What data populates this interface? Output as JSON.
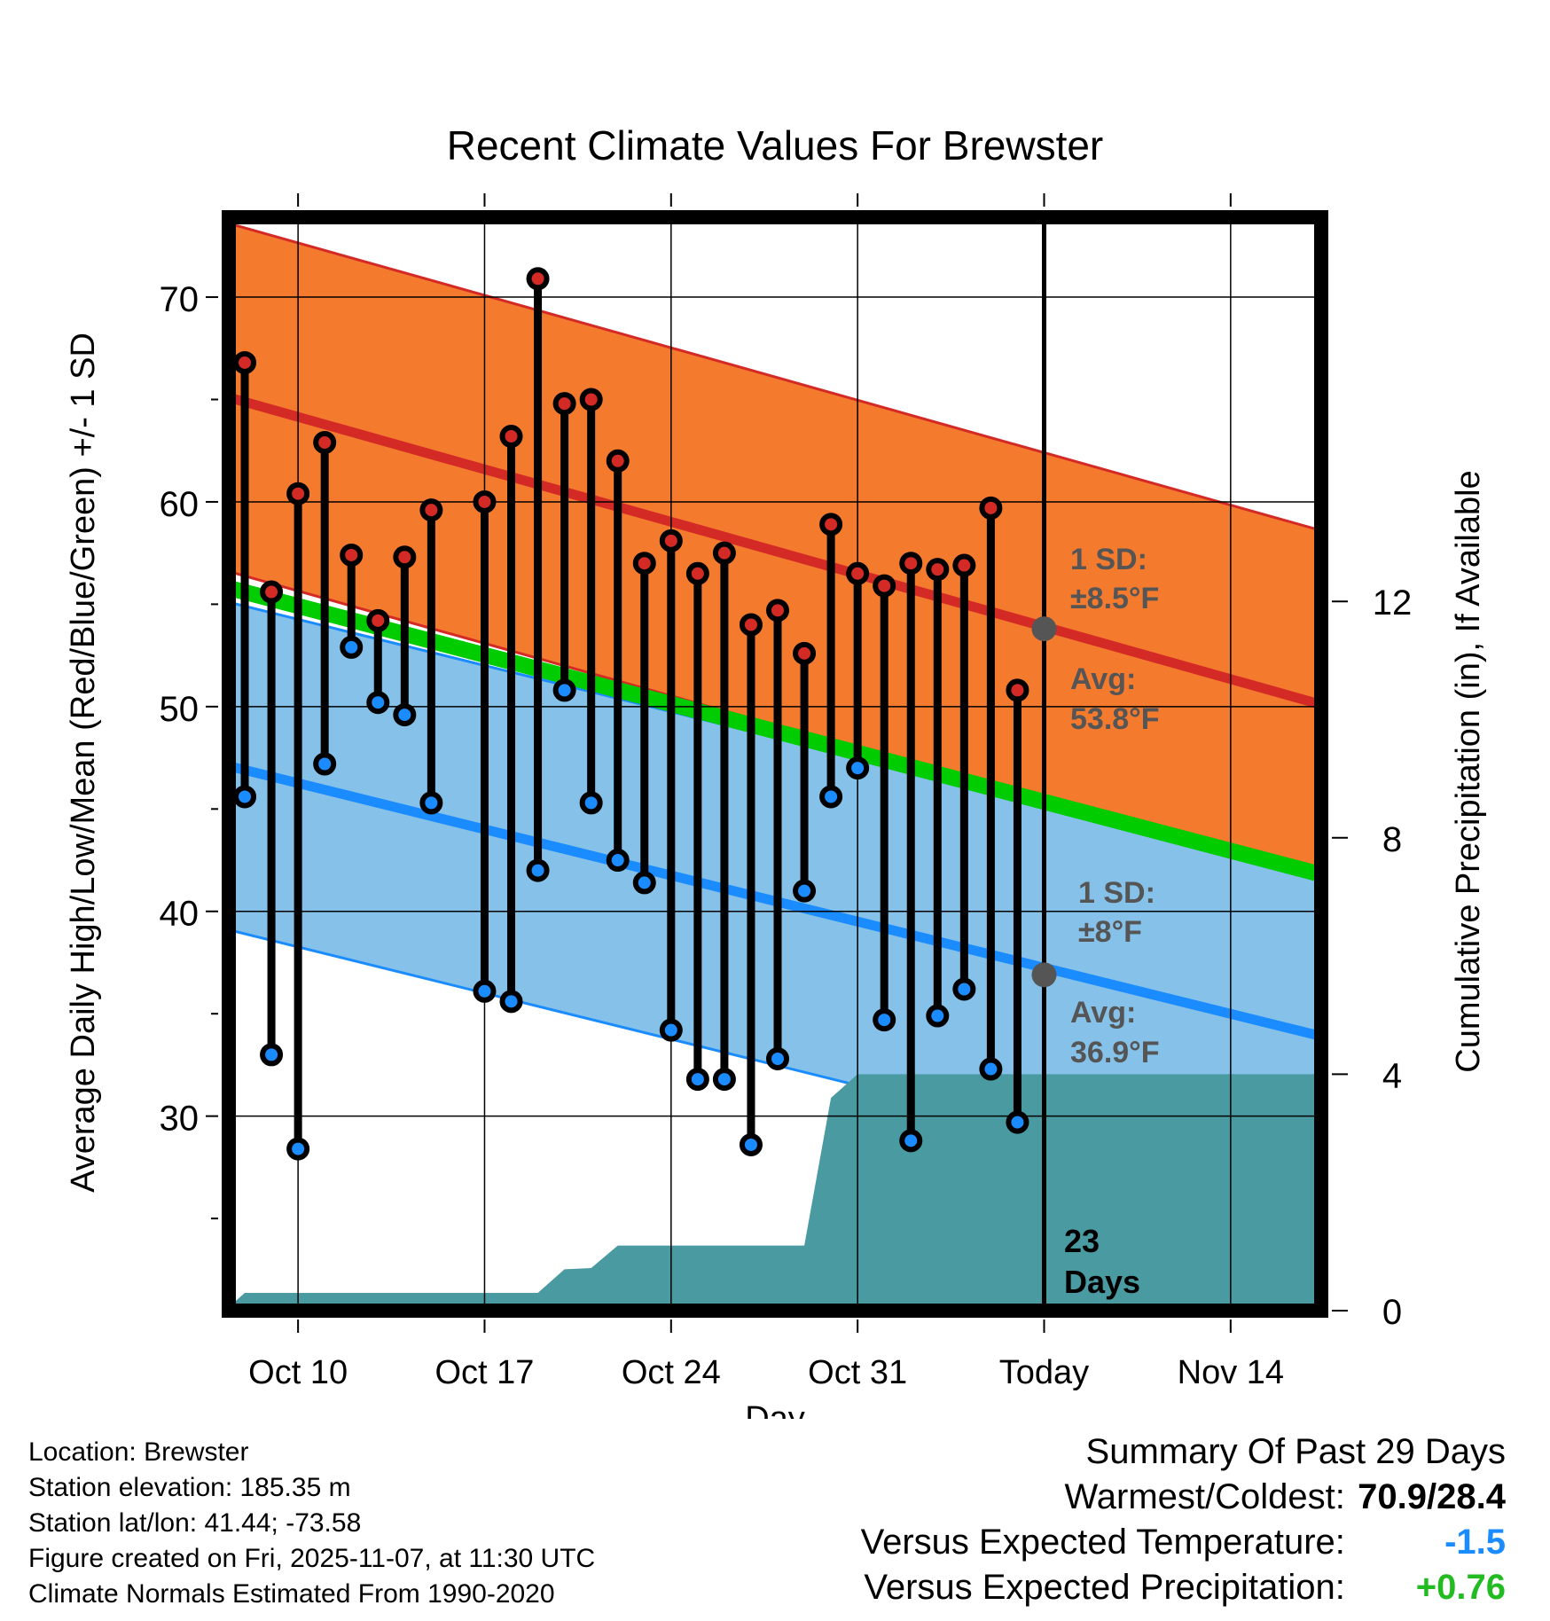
{
  "chart_data": {
    "type": "line",
    "title": "Recent Climate Values For Brewster",
    "xlabel": "Day",
    "ylabel": "Average Daily High/Low/Mean (Red/Blue/Green) +/- 1 SD",
    "y2label": "Cumulative Precipitation (in), If Available",
    "ylim": [
      20.5,
      73.9
    ],
    "y2lim": [
      0,
      18.5
    ],
    "xlim": [
      -0.6,
      40.4
    ],
    "x_ticks": [
      {
        "day": 2,
        "label": "Oct 10"
      },
      {
        "day": 9,
        "label": "Oct 17"
      },
      {
        "day": 16,
        "label": "Oct 24"
      },
      {
        "day": 23,
        "label": "Oct 31"
      },
      {
        "day": 30,
        "label": "Today"
      },
      {
        "day": 37,
        "label": "Nov 14"
      }
    ],
    "y_ticks": [
      30,
      40,
      50,
      60,
      70
    ],
    "y2_ticks": [
      0,
      4,
      8,
      12
    ],
    "today_day": 30,
    "normals": {
      "high_avg": [
        65.1,
        50.1
      ],
      "high_sd": 8.5,
      "low_avg": [
        47.1,
        33.9
      ],
      "low_sd": 8,
      "mean": [
        55.8,
        41.8
      ]
    },
    "highs": [
      66.8,
      55.6,
      60.4,
      62.9,
      57.4,
      54.2,
      57.3,
      59.6,
      null,
      60.0,
      63.2,
      70.9,
      64.8,
      65.0,
      62.0,
      57.0,
      58.1,
      56.5,
      57.5,
      54.0,
      54.7,
      52.6,
      58.9,
      56.5,
      55.9,
      57.0,
      56.7,
      56.9,
      59.7,
      50.8
    ],
    "lows": [
      45.6,
      33.0,
      28.4,
      47.2,
      52.9,
      50.2,
      49.6,
      45.3,
      null,
      36.1,
      35.6,
      42.0,
      50.8,
      45.3,
      42.5,
      41.4,
      34.2,
      31.8,
      31.8,
      28.6,
      32.8,
      41.0,
      45.6,
      47.0,
      34.7,
      28.8,
      34.9,
      36.2,
      32.3,
      29.7
    ],
    "cumulative_precip": [
      {
        "day": -0.5,
        "value": 0.1
      },
      {
        "day": 0,
        "value": 0.3
      },
      {
        "day": 11,
        "value": 0.3
      },
      {
        "day": 12,
        "value": 0.7
      },
      {
        "day": 13,
        "value": 0.72
      },
      {
        "day": 14,
        "value": 1.1
      },
      {
        "day": 21,
        "value": 1.1
      },
      {
        "day": 22,
        "value": 3.6
      },
      {
        "day": 23,
        "value": 4.0
      },
      {
        "day": 40.3,
        "value": 4.0
      }
    ],
    "annotations": {
      "high_sd_label": "1 SD:",
      "high_sd_value": "±8.5°F",
      "high_avg_label": "Avg:",
      "high_avg_value": "53.8°F",
      "high_avg_today": 53.8,
      "low_sd_label": "1 SD:",
      "low_sd_value": "±8°F",
      "low_avg_label": "Avg:",
      "low_avg_value": "36.9°F",
      "low_avg_today": 36.9,
      "days_count": "23",
      "days_word": "Days"
    },
    "colors": {
      "high_band": "#f47a2e",
      "high_line": "#d42a26",
      "high_edge": "#d42a26",
      "low_band": "#85c1e8",
      "low_line": "#1a8cff",
      "low_edge": "#1a8cff",
      "mean_line": "#00cc00",
      "precip": "#4a9aa2",
      "high_marker": "#d42a26",
      "low_marker": "#1a8cff",
      "annotation": "#555555",
      "today_dot": "#555555"
    }
  },
  "info": {
    "location": "Location: Brewster",
    "elevation": "Station elevation: 185.35 m",
    "latlon": "Station lat/lon: 41.44; -73.58",
    "created": "Figure created on Fri, 2025-11-07, at 11:30 UTC",
    "normals": "Climate Normals Estimated From 1990-2020"
  },
  "summary": {
    "title": "Summary Of Past 29 Days",
    "warm_cold_label": "Warmest/Coldest:",
    "warm_cold_value": "70.9/28.4",
    "temp_label": "Versus Expected Temperature:",
    "temp_value": "-1.5",
    "temp_color": "#1a8cff",
    "precip_label": "Versus Expected Precipitation:",
    "precip_value": "+0.76",
    "precip_color": "#22bb22"
  }
}
